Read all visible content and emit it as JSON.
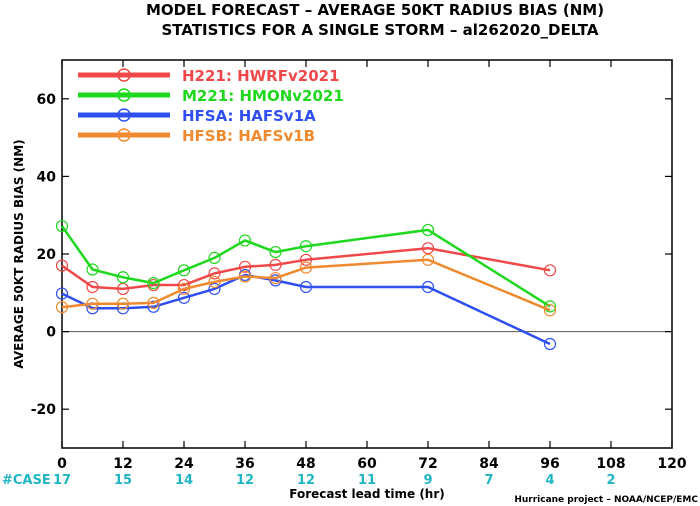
{
  "title_line1": "MODEL FORECAST – AVERAGE 50KT RADIUS BIAS (NM)",
  "title_line2": "STATISTICS FOR A SINGLE STORM – al262020_DELTA",
  "credit": "Hurricane project – NOAA/NCEP/EMC",
  "case_label": "#CASE",
  "chart_data": {
    "type": "line",
    "xlabel": "Forecast lead time (hr)",
    "ylabel": "AVERAGE 50KT RADIUS BIAS (NM)",
    "xlim": [
      0,
      120
    ],
    "ylim": [
      -30,
      70
    ],
    "x_ticks": [
      0,
      12,
      24,
      36,
      48,
      60,
      72,
      84,
      96,
      108,
      120
    ],
    "y_ticks": [
      -20,
      0,
      20,
      40,
      60
    ],
    "zero_line": true,
    "legend_position": "top-left",
    "cases": [
      {
        "x": 0,
        "n": "17"
      },
      {
        "x": 12,
        "n": "15"
      },
      {
        "x": 24,
        "n": "14"
      },
      {
        "x": 36,
        "n": "12"
      },
      {
        "x": 48,
        "n": "12"
      },
      {
        "x": 60,
        "n": "11"
      },
      {
        "x": 72,
        "n": "9"
      },
      {
        "x": 84,
        "n": "7"
      },
      {
        "x": 96,
        "n": "4"
      },
      {
        "x": 108,
        "n": "2"
      }
    ],
    "series": [
      {
        "name": "H221: HWRFv2021",
        "color": "#f04848",
        "x": [
          0,
          6,
          12,
          18,
          24,
          30,
          36,
          42,
          48,
          72,
          96
        ],
        "y": [
          17,
          11.5,
          11,
          12,
          12,
          15,
          16.7,
          17.2,
          18.5,
          21.5,
          15.8
        ]
      },
      {
        "name": "M221: HMONv2021",
        "color": "#1ed81e",
        "x": [
          0,
          6,
          12,
          18,
          24,
          30,
          36,
          42,
          48,
          72,
          96
        ],
        "y": [
          27.2,
          16,
          14,
          12.5,
          15.8,
          19,
          23.5,
          20.5,
          22,
          26.2,
          6.5
        ]
      },
      {
        "name": "HFSA: HAFSv1A",
        "color": "#2f4ff0",
        "x": [
          0,
          6,
          12,
          18,
          24,
          30,
          36,
          42,
          48,
          72,
          96
        ],
        "y": [
          9.8,
          6,
          6,
          6.4,
          8.7,
          11,
          14.6,
          13.2,
          11.5,
          11.5,
          -3.2
        ]
      },
      {
        "name": "HFSB: HAFSv1B",
        "color": "#f08a30",
        "x": [
          0,
          6,
          12,
          18,
          24,
          30,
          36,
          42,
          48,
          72,
          96
        ],
        "y": [
          6.3,
          7.2,
          7.2,
          7.4,
          11,
          12.8,
          14.2,
          13.8,
          16.5,
          18.5,
          5.5
        ]
      }
    ]
  }
}
